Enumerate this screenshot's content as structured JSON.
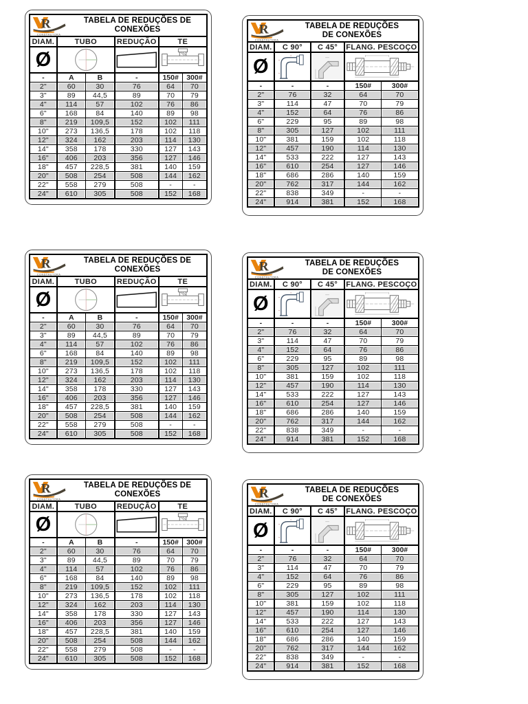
{
  "document": {
    "kind": "fitting-reduction-reference-sheet",
    "page_background": "#ffffff"
  },
  "logo": {
    "monogram_v": "V",
    "monogram_r": "R",
    "subtext": "CONSTRUTORA",
    "v_color": "#E8830C",
    "dark_color": "#453e31"
  },
  "colors": {
    "table_border": "#000000",
    "row_shade": "#d6d6d6",
    "text": "#262626",
    "accent_orange": "#E8830C"
  },
  "tables": {
    "left": {
      "title_lines": [
        "TABELA DE REDUÇÕES DE",
        "CONEXÕES"
      ],
      "diameter_symbol": "Ø",
      "columns": [
        {
          "label": "DIAM.",
          "span": 1,
          "drawing": "diameter-symbol",
          "sub": [
            "-"
          ]
        },
        {
          "label": "TUBO",
          "span": 2,
          "drawing": "pipe-section",
          "sub": [
            "A",
            "B"
          ]
        },
        {
          "label": "REDUÇÃO",
          "span": 1,
          "drawing": "reducer",
          "sub": [
            "-"
          ]
        },
        {
          "label": "TE",
          "span": 2,
          "drawing": "tee",
          "sub": [
            "150#",
            "300#"
          ]
        }
      ],
      "rows": [
        [
          "2\"",
          "60",
          "30",
          "76",
          "64",
          "70"
        ],
        [
          "3\"",
          "89",
          "44,5",
          "89",
          "70",
          "79"
        ],
        [
          "4\"",
          "114",
          "57",
          "102",
          "76",
          "86"
        ],
        [
          "6\"",
          "168",
          "84",
          "140",
          "89",
          "98"
        ],
        [
          "8\"",
          "219",
          "109,5",
          "152",
          "102",
          "111"
        ],
        [
          "10\"",
          "273",
          "136,5",
          "178",
          "102",
          "118"
        ],
        [
          "12\"",
          "324",
          "162",
          "203",
          "114",
          "130"
        ],
        [
          "14\"",
          "358",
          "178",
          "330",
          "127",
          "143"
        ],
        [
          "16\"",
          "406",
          "203",
          "356",
          "127",
          "146"
        ],
        [
          "18\"",
          "457",
          "228,5",
          "381",
          "140",
          "159"
        ],
        [
          "20\"",
          "508",
          "254",
          "508",
          "144",
          "162"
        ],
        [
          "22\"",
          "558",
          "279",
          "508",
          "-",
          "-"
        ],
        [
          "24\"",
          "610",
          "305",
          "508",
          "152",
          "168"
        ]
      ]
    },
    "right": {
      "title_lines": [
        "TABELA DE REDUÇÕES",
        "DE CONEXÕES"
      ],
      "diameter_symbol": "Ø",
      "columns": [
        {
          "label": "DIAM.",
          "span": 1,
          "drawing": "diameter-symbol",
          "sub": [
            "-"
          ]
        },
        {
          "label": "C 90°",
          "span": 1,
          "drawing": "elbow-90",
          "sub": [
            "-"
          ]
        },
        {
          "label": "C 45°",
          "span": 1,
          "drawing": "elbow-45",
          "sub": [
            "-"
          ]
        },
        {
          "label": "FLANG. PESCOÇO",
          "span": 2,
          "drawing": "weld-neck-flange",
          "sub": [
            "150#",
            "300#"
          ]
        }
      ],
      "rows": [
        [
          "2\"",
          "76",
          "32",
          "64",
          "70"
        ],
        [
          "3\"",
          "114",
          "47",
          "70",
          "79"
        ],
        [
          "4\"",
          "152",
          "64",
          "76",
          "86"
        ],
        [
          "6\"",
          "229",
          "95",
          "89",
          "98"
        ],
        [
          "8\"",
          "305",
          "127",
          "102",
          "111"
        ],
        [
          "10\"",
          "381",
          "159",
          "102",
          "118"
        ],
        [
          "12\"",
          "457",
          "190",
          "114",
          "130"
        ],
        [
          "14\"",
          "533",
          "222",
          "127",
          "143"
        ],
        [
          "16\"",
          "610",
          "254",
          "127",
          "146"
        ],
        [
          "18\"",
          "686",
          "286",
          "140",
          "159"
        ],
        [
          "20\"",
          "762",
          "317",
          "144",
          "162"
        ],
        [
          "22\"",
          "838",
          "349",
          "-",
          "-"
        ],
        [
          "24\"",
          "914",
          "381",
          "152",
          "168"
        ]
      ]
    }
  },
  "grid": [
    [
      "left",
      "right"
    ],
    [
      "left",
      "right"
    ],
    [
      "left",
      "right"
    ]
  ]
}
